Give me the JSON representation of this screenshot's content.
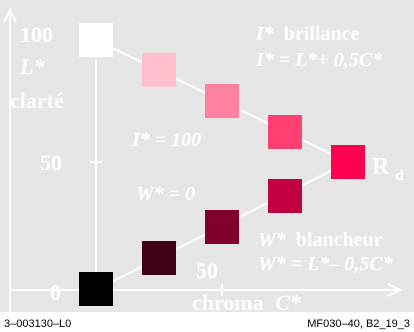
{
  "axis": {
    "y_tick_top": "100",
    "y_tick_mid": "50",
    "y_tick_zero": "0",
    "y_label_1": "L*",
    "y_label_2": "clarté",
    "x_tick_mid": "50",
    "x_label_word": "chroma",
    "x_label_var": "C*"
  },
  "annotations": {
    "brillance_var": "I*",
    "brillance_word": "brillance",
    "brillance_formula": "I* = L*+ 0,5C*",
    "i100": "I* = 100",
    "w0": "W* = 0",
    "blancheur_var": "W*",
    "blancheur_word": "blancheur",
    "blancheur_formula": "W* = L*– 0,5C*",
    "rd_main": "R",
    "rd_sub": "d"
  },
  "footer": {
    "left": "3–003130–L0",
    "right": "MF030–40, B2_19_3"
  },
  "colors": {
    "background": "#e6e6e6",
    "axis": "#ffffff",
    "text": "#ffffff",
    "foot_text": "#000000",
    "upper_series": [
      "#ffffff",
      "#ffbfcc",
      "#ff80a0",
      "#ff4070",
      "#ff0050"
    ],
    "lower_series": [
      "#000000",
      "#40001a",
      "#800030",
      "#c00040",
      "#ff0050"
    ]
  },
  "swatches": {
    "upper": [
      {
        "name": "swatch-white",
        "L": 100,
        "C": 0
      },
      {
        "name": "swatch-light-pink",
        "L": 87.5,
        "C": 25
      },
      {
        "name": "swatch-pink",
        "L": 75,
        "C": 50
      },
      {
        "name": "swatch-rose",
        "L": 62.5,
        "C": 75
      },
      {
        "name": "swatch-red-rd",
        "L": 50,
        "C": 100
      }
    ],
    "lower": [
      {
        "name": "swatch-black",
        "L": 0,
        "C": 0
      },
      {
        "name": "swatch-dark-maroon",
        "L": 12.5,
        "C": 25
      },
      {
        "name": "swatch-maroon",
        "L": 25,
        "C": 50
      },
      {
        "name": "swatch-crimson",
        "L": 37.5,
        "C": 75
      }
    ]
  }
}
